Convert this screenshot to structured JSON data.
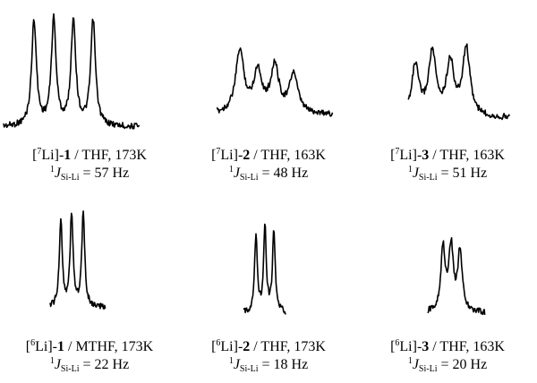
{
  "panels": [
    {
      "isotope": "7",
      "compound": "1",
      "solvent": "THF",
      "temperature": "173K",
      "coupling_value": "57 Hz"
    },
    {
      "isotope": "7",
      "compound": "2",
      "solvent": "THF",
      "temperature": "163K",
      "coupling_value": "48 Hz"
    },
    {
      "isotope": "7",
      "compound": "3",
      "solvent": "THF",
      "temperature": "163K",
      "coupling_value": "51 Hz"
    },
    {
      "isotope": "6",
      "compound": "1",
      "solvent": "MTHF",
      "temperature": "173K",
      "coupling_value": "22 Hz"
    },
    {
      "isotope": "6",
      "compound": "2",
      "solvent": "THF",
      "temperature": "173K",
      "coupling_value": "18 Hz"
    },
    {
      "isotope": "6",
      "compound": "3",
      "solvent": "THF",
      "temperature": "163K",
      "coupling_value": "20 Hz"
    }
  ],
  "labels": {
    "element": "Li",
    "coupling_prefix": "1",
    "coupling_symbol": "J",
    "coupling_subscript": "Si-Li",
    "separator": " / ",
    "comma": ", ",
    "equals": " = "
  }
}
